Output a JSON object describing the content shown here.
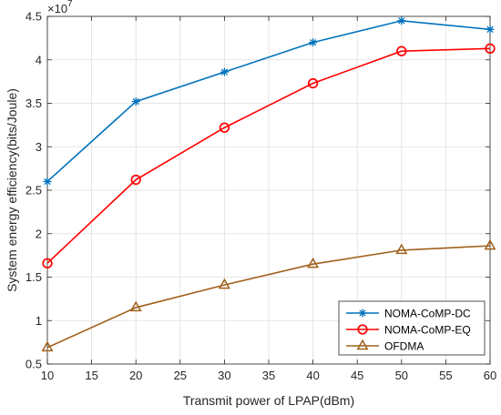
{
  "chart_data": {
    "type": "line",
    "x": [
      10,
      20,
      30,
      40,
      50,
      60
    ],
    "series": [
      {
        "name": "NOMA-CoMP-DC",
        "values": [
          2.6,
          3.52,
          3.86,
          4.2,
          4.45,
          4.35
        ],
        "color": "#0072bd",
        "marker": "asterisk"
      },
      {
        "name": "NOMA-CoMP-EQ",
        "values": [
          1.66,
          2.62,
          3.22,
          3.73,
          4.1,
          4.13
        ],
        "color": "#ff0000",
        "marker": "circle"
      },
      {
        "name": "OFDMA",
        "values": [
          0.69,
          1.15,
          1.41,
          1.65,
          1.81,
          1.86
        ],
        "color": "#a0611c",
        "marker": "triangle"
      }
    ],
    "xlabel": "Transmit power of LPAP(dBm)",
    "ylabel": "System energy efficiency(bits/Joule)",
    "y_exponent": "×10",
    "y_exponent_power": "7",
    "xlim": [
      10,
      60
    ],
    "ylim": [
      0.5,
      4.5
    ],
    "xticks": [
      10,
      15,
      20,
      25,
      30,
      35,
      40,
      45,
      50,
      55,
      60
    ],
    "yticks": [
      0.5,
      1,
      1.5,
      2,
      2.5,
      3,
      3.5,
      4,
      4.5
    ],
    "yticklabels": [
      "0.5",
      "1",
      "1.5",
      "2",
      "2.5",
      "3",
      "3.5",
      "4",
      "4.5"
    ],
    "grid": true,
    "legend_position": "bottom-right"
  }
}
